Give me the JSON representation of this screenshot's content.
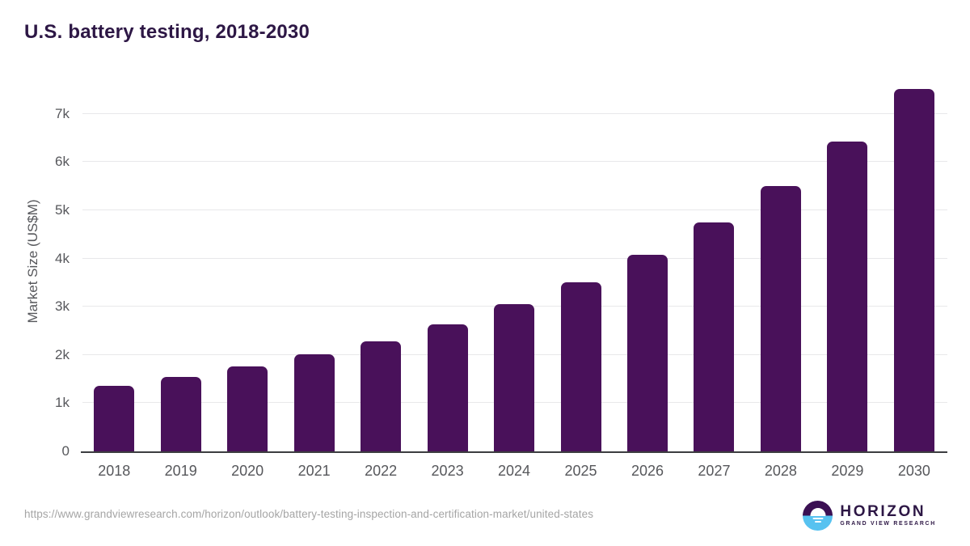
{
  "page": {
    "title": "U.S. battery testing, 2018-2030"
  },
  "chart_data": {
    "type": "bar",
    "title": "U.S. battery testing, 2018-2030",
    "xlabel": "",
    "ylabel": "Market Size (US$M)",
    "categories": [
      "2018",
      "2019",
      "2020",
      "2021",
      "2022",
      "2023",
      "2024",
      "2025",
      "2026",
      "2027",
      "2028",
      "2029",
      "2030"
    ],
    "values": [
      1360,
      1550,
      1770,
      2010,
      2290,
      2640,
      3050,
      3510,
      4080,
      4750,
      5510,
      6420,
      7510
    ],
    "unit": "US$M",
    "ylim": [
      0,
      7600
    ],
    "yticks": [
      {
        "value": 0,
        "label": "0"
      },
      {
        "value": 1000,
        "label": "1k"
      },
      {
        "value": 2000,
        "label": "2k"
      },
      {
        "value": 3000,
        "label": "3k"
      },
      {
        "value": 4000,
        "label": "4k"
      },
      {
        "value": 5000,
        "label": "5k"
      },
      {
        "value": 6000,
        "label": "6k"
      },
      {
        "value": 7000,
        "label": "7k"
      }
    ],
    "grid": "horizontal",
    "bar_color": "#49115a"
  },
  "footer": {
    "source_url": "https://www.grandviewresearch.com/horizon/outlook/battery-testing-inspection-and-certification-market/united-states",
    "logo": {
      "title": "HORIZON",
      "subtitle": "GRAND VIEW RESEARCH"
    }
  },
  "colors": {
    "title_text": "#2d1745",
    "bar": "#49115a",
    "axis_text": "#56575b",
    "gridline": "#e8e8ea",
    "baseline": "#3c3d40",
    "url_text": "#a5a5a5",
    "logo_purple": "#3b1053",
    "logo_blue": "#57c2f0"
  }
}
